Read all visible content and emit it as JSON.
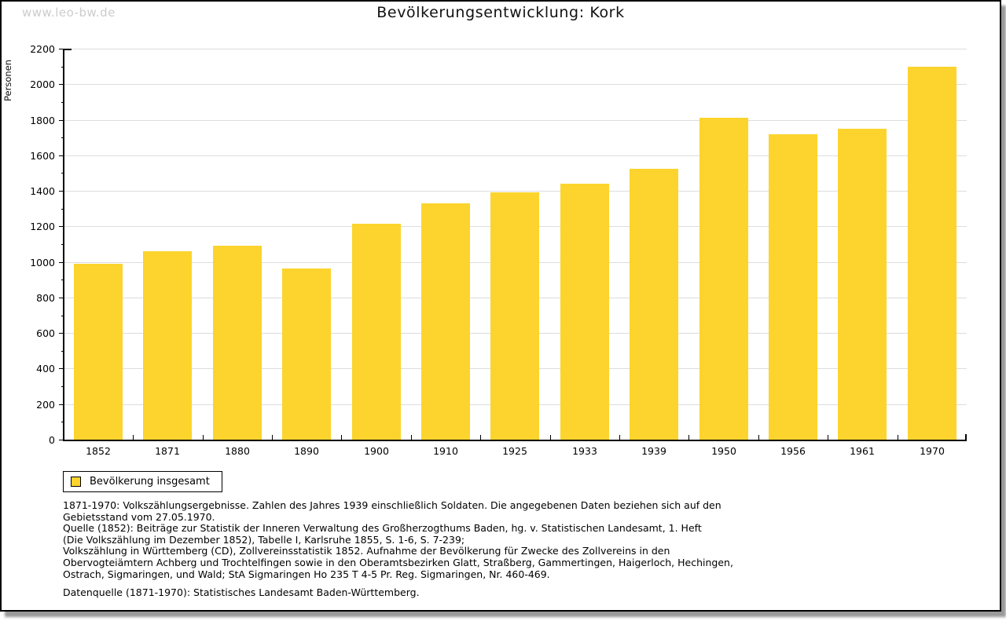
{
  "page": {
    "watermark": "www.leo-bw.de",
    "title": "Bevölkerungsentwicklung: Kork"
  },
  "chart_data": {
    "type": "bar",
    "title": "Bevölkerungsentwicklung: Kork",
    "categories": [
      "1852",
      "1871",
      "1880",
      "1890",
      "1900",
      "1910",
      "1925",
      "1933",
      "1939",
      "1950",
      "1956",
      "1961",
      "1970"
    ],
    "values": [
      990,
      1060,
      1090,
      965,
      1215,
      1330,
      1390,
      1440,
      1525,
      1810,
      1720,
      1750,
      2100
    ],
    "series_name": "Bevölkerung insgesamt",
    "xlabel": "",
    "ylabel": "Personen",
    "ylim": [
      0,
      2200
    ],
    "ytick_step": 200,
    "yminor_step": 100,
    "grid": true,
    "bar_color": "#FCD42D",
    "grid_color": "#DDDDDD",
    "legend": [
      {
        "label": "Bevölkerung insgesamt",
        "color": "#FCD42D"
      }
    ],
    "legend_position": "bottom-left"
  },
  "footnotes": {
    "lines": [
      "1871-1970: Volkszählungsergebnisse. Zahlen des Jahres 1939 einschließlich Soldaten. Die angegebenen Daten beziehen sich auf den",
      "Gebietsstand vom 27.05.1970.",
      "Quelle (1852): Beiträge zur Statistik der Inneren Verwaltung des Großherzogthums Baden, hg. v. Statistischen Landesamt, 1. Heft",
      "(Die Volkszählung im Dezember 1852), Tabelle I, Karlsruhe 1855, S. 1-6, S. 7-239;",
      "Volkszählung in Württemberg (CD), Zollvereinsstatistik 1852. Aufnahme der Bevölkerung für Zwecke des Zollvereins in den",
      "Obervogteiämtern Achberg und Trochtelfingen sowie in den Oberamtsbezirken Glatt, Straßberg, Gammertingen, Haigerloch, Hechingen,",
      "Ostrach, Sigmaringen, und Wald; StA Sigmaringen Ho 235 T 4-5 Pr. Reg. Sigmaringen, Nr. 460-469."
    ],
    "datasource": "Datenquelle (1871-1970): Statistisches Landesamt Baden-Württemberg."
  }
}
